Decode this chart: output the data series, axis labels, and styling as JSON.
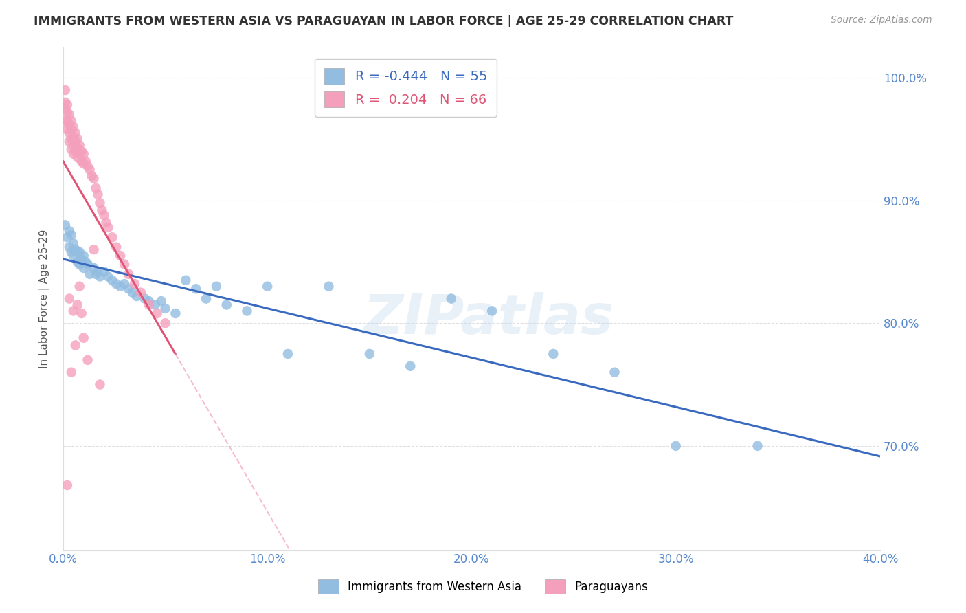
{
  "title": "IMMIGRANTS FROM WESTERN ASIA VS PARAGUAYAN IN LABOR FORCE | AGE 25-29 CORRELATION CHART",
  "source": "Source: ZipAtlas.com",
  "ylabel": "In Labor Force | Age 25-29",
  "watermark": "ZIPatlas",
  "blue_R": "-0.444",
  "blue_N": "55",
  "pink_R": "0.204",
  "pink_N": "66",
  "legend_label_blue": "Immigrants from Western Asia",
  "legend_label_pink": "Paraguayans",
  "xlim": [
    0.0,
    0.4
  ],
  "ylim": [
    0.615,
    1.025
  ],
  "yticks": [
    0.7,
    0.8,
    0.9,
    1.0
  ],
  "xticks": [
    0.0,
    0.1,
    0.2,
    0.3,
    0.4
  ],
  "blue_color": "#92bde0",
  "pink_color": "#f4a0bc",
  "blue_line_color": "#3a6abf",
  "pink_line_color": "#e05575",
  "pink_line_dash_color": "#f4a0bc",
  "axis_label_color": "#5588cc",
  "grid_color": "#cccccc",
  "title_color": "#333333",
  "blue_points_x": [
    0.001,
    0.002,
    0.003,
    0.003,
    0.004,
    0.004,
    0.005,
    0.005,
    0.006,
    0.007,
    0.007,
    0.008,
    0.008,
    0.009,
    0.01,
    0.01,
    0.011,
    0.012,
    0.013,
    0.015,
    0.016,
    0.017,
    0.018,
    0.02,
    0.022,
    0.024,
    0.026,
    0.028,
    0.03,
    0.032,
    0.034,
    0.036,
    0.04,
    0.042,
    0.045,
    0.048,
    0.05,
    0.055,
    0.06,
    0.065,
    0.07,
    0.075,
    0.08,
    0.09,
    0.1,
    0.11,
    0.13,
    0.15,
    0.17,
    0.19,
    0.21,
    0.24,
    0.27,
    0.3,
    0.34
  ],
  "blue_points_y": [
    0.88,
    0.87,
    0.875,
    0.862,
    0.872,
    0.858,
    0.865,
    0.855,
    0.86,
    0.858,
    0.85,
    0.858,
    0.848,
    0.852,
    0.855,
    0.845,
    0.85,
    0.848,
    0.84,
    0.845,
    0.84,
    0.842,
    0.838,
    0.842,
    0.838,
    0.835,
    0.832,
    0.83,
    0.832,
    0.828,
    0.825,
    0.822,
    0.82,
    0.818,
    0.815,
    0.818,
    0.812,
    0.808,
    0.835,
    0.828,
    0.82,
    0.83,
    0.815,
    0.81,
    0.83,
    0.775,
    0.83,
    0.775,
    0.765,
    0.82,
    0.81,
    0.775,
    0.76,
    0.7,
    0.7
  ],
  "pink_points_x": [
    0.001,
    0.001,
    0.001,
    0.001,
    0.002,
    0.002,
    0.002,
    0.002,
    0.003,
    0.003,
    0.003,
    0.003,
    0.004,
    0.004,
    0.004,
    0.004,
    0.005,
    0.005,
    0.005,
    0.005,
    0.006,
    0.006,
    0.006,
    0.007,
    0.007,
    0.007,
    0.008,
    0.008,
    0.009,
    0.009,
    0.01,
    0.01,
    0.011,
    0.012,
    0.013,
    0.014,
    0.015,
    0.016,
    0.017,
    0.018,
    0.019,
    0.02,
    0.021,
    0.022,
    0.024,
    0.026,
    0.028,
    0.03,
    0.032,
    0.035,
    0.038,
    0.042,
    0.046,
    0.05,
    0.015,
    0.008,
    0.003,
    0.005,
    0.007,
    0.009,
    0.002,
    0.004,
    0.006,
    0.01,
    0.012,
    0.018
  ],
  "pink_points_y": [
    0.99,
    0.98,
    0.975,
    0.965,
    0.978,
    0.972,
    0.965,
    0.958,
    0.97,
    0.962,
    0.955,
    0.948,
    0.965,
    0.958,
    0.95,
    0.942,
    0.96,
    0.952,
    0.945,
    0.938,
    0.955,
    0.948,
    0.94,
    0.95,
    0.943,
    0.935,
    0.945,
    0.938,
    0.94,
    0.932,
    0.938,
    0.93,
    0.932,
    0.928,
    0.925,
    0.92,
    0.918,
    0.91,
    0.905,
    0.898,
    0.892,
    0.888,
    0.882,
    0.878,
    0.87,
    0.862,
    0.855,
    0.848,
    0.84,
    0.832,
    0.825,
    0.815,
    0.808,
    0.8,
    0.86,
    0.83,
    0.82,
    0.81,
    0.815,
    0.808,
    0.668,
    0.76,
    0.782,
    0.788,
    0.77,
    0.75
  ]
}
